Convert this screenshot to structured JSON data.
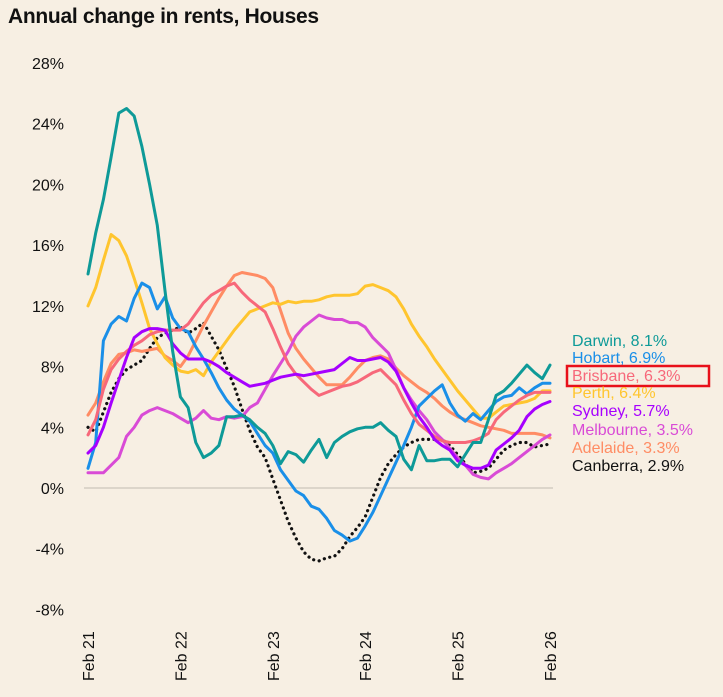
{
  "chart_data": {
    "type": "line",
    "title": "Annual change in rents, Houses",
    "x_start": "Feb 21",
    "x_frequency": "monthly",
    "x_tick_labels": [
      "Feb 21",
      "Feb 22",
      "Feb 23",
      "Feb 24",
      "Feb 25",
      "Feb 26"
    ],
    "y_tick_labels": [
      "28%",
      "24%",
      "20%",
      "16%",
      "12%",
      "8%",
      "4%",
      "0%",
      "-4%",
      "-8%"
    ],
    "ylim": [
      -8,
      28
    ],
    "grid": false,
    "zero_line": true,
    "legend_placement": "right",
    "highlighted_series": "Brisbane",
    "highlight_color": "#e8101a",
    "series": [
      {
        "name": "Darwin",
        "label": "Darwin, 8.1%",
        "color": "#0e9a98",
        "dotted": false,
        "values": [
          14.1,
          16.8,
          19,
          21.8,
          24.7,
          25,
          24.5,
          22.5,
          20,
          17.3,
          13,
          9,
          6,
          5.3,
          3,
          2,
          2.3,
          2.8,
          4.7,
          4.7,
          4.8,
          4.5,
          4,
          3.6,
          2.8,
          1.6,
          2.4,
          2.2,
          1.7,
          2.5,
          3.2,
          2,
          3,
          3.4,
          3.7,
          3.9,
          4,
          4,
          4.3,
          3.8,
          3.4,
          1.9,
          1.2,
          2.8,
          1.8,
          1.8,
          1.9,
          1.9,
          1.4,
          2.2,
          3,
          3,
          4.5,
          6.1,
          6.4,
          6.9,
          7.5,
          8.1,
          7.6,
          7.2,
          8.1
        ]
      },
      {
        "name": "Hobart",
        "label": "Hobart, 6.9%",
        "color": "#1a8fe8",
        "dotted": false,
        "values": [
          1.3,
          3,
          9.7,
          10.8,
          11.3,
          11,
          12.5,
          13.5,
          13.2,
          11.8,
          12.6,
          11.2,
          10.5,
          10.3,
          9.3,
          8.5,
          7.6,
          6.6,
          5.8,
          5.2,
          4.8,
          4.4,
          3.6,
          2.8,
          2.3,
          1.2,
          0.5,
          -0.2,
          -0.5,
          -1.2,
          -1.4,
          -2,
          -2.8,
          -3.1,
          -3.5,
          -3.3,
          -2.5,
          -1.6,
          -0.5,
          0.6,
          1.7,
          2.8,
          4,
          5.4,
          5.9,
          6.4,
          6.8,
          5.6,
          4.8,
          4.4,
          4.9,
          4.5,
          5.1,
          5.7,
          6,
          6.1,
          6.6,
          6.2,
          6.6,
          6.9,
          6.9
        ]
      },
      {
        "name": "Brisbane",
        "label": "Brisbane, 6.3%",
        "color": "#f7687a",
        "dotted": false,
        "values": [
          3.5,
          4.5,
          6.5,
          7.8,
          8.5,
          9,
          9.4,
          9.7,
          10.1,
          10.3,
          10.4,
          10.4,
          10.4,
          10.8,
          11.5,
          12.2,
          12.7,
          13,
          13.3,
          13.5,
          12.9,
          12.4,
          12,
          11.6,
          10.5,
          9.3,
          8.2,
          7.5,
          7,
          6.5,
          6.1,
          6.3,
          6.5,
          6.7,
          6.8,
          7,
          7.3,
          7.6,
          7.8,
          7.3,
          6.8,
          5.8,
          4.9,
          4.2,
          3.8,
          3.4,
          3.1,
          3,
          3,
          3,
          3.1,
          3.3,
          3.6,
          4.5,
          5,
          5.4,
          5.8,
          6.1,
          6.3,
          6.3,
          6.3
        ]
      },
      {
        "name": "Perth",
        "label": "Perth, 6.4%",
        "color": "#ffc52e",
        "dotted": false,
        "values": [
          12,
          13.2,
          15,
          16.7,
          16.3,
          15.3,
          13.8,
          12.2,
          10.5,
          9.5,
          8.6,
          8.1,
          7.7,
          7.6,
          7.8,
          7.4,
          8.3,
          9,
          9.7,
          10.4,
          11,
          11.6,
          11.8,
          12,
          12.2,
          12.1,
          12.3,
          12.2,
          12.3,
          12.3,
          12.4,
          12.6,
          12.7,
          12.7,
          12.7,
          12.8,
          13.3,
          13.4,
          13.2,
          13,
          12.6,
          11.8,
          10.8,
          10,
          9.3,
          8.5,
          7.8,
          7.1,
          6.4,
          5.8,
          5.2,
          4.6,
          4.6,
          5,
          5.4,
          5.5,
          5.6,
          5.7,
          5.9,
          6.4,
          6.4
        ]
      },
      {
        "name": "Sydney",
        "label": "Sydney, 5.7%",
        "color": "#a600ff",
        "dotted": false,
        "values": [
          2.3,
          2.8,
          4,
          5.6,
          7.1,
          8.6,
          9.9,
          10.3,
          10.5,
          10.5,
          10.4,
          9.5,
          8.9,
          8.5,
          8.5,
          8.5,
          8.3,
          8,
          7.6,
          7.3,
          7,
          6.7,
          6.8,
          6.9,
          7.1,
          7.3,
          7.4,
          7.5,
          7.4,
          7.5,
          7.6,
          7.7,
          7.8,
          8.2,
          8.6,
          8.4,
          8.4,
          8.5,
          8.6,
          8.3,
          7.7,
          6.6,
          5.6,
          4.7,
          4,
          3.2,
          2.8,
          2.5,
          1.8,
          1.5,
          1.3,
          1.3,
          1.5,
          2.5,
          2.9,
          3.3,
          3.8,
          4.7,
          5.2,
          5.5,
          5.7
        ]
      },
      {
        "name": "Melbourne",
        "label": "Melbourne, 3.5%",
        "color": "#d94bd6",
        "dotted": false,
        "values": [
          1,
          1,
          1,
          1.5,
          2,
          3.4,
          4,
          4.8,
          5.1,
          5.3,
          5.1,
          4.9,
          4.6,
          4.3,
          4.6,
          5.1,
          4.6,
          4.5,
          4.7,
          4.6,
          4.7,
          5.3,
          5.6,
          6.5,
          7.4,
          8.2,
          9,
          10,
          10.6,
          11,
          11.4,
          11.2,
          11.1,
          11.1,
          10.9,
          10.9,
          10.6,
          9.9,
          9.4,
          8.9,
          7.8,
          6.6,
          5.8,
          5.1,
          4.5,
          3.7,
          3.2,
          2.6,
          2,
          1.5,
          0.9,
          0.7,
          0.6,
          1,
          1.3,
          1.6,
          2,
          2.4,
          2.8,
          3.2,
          3.5
        ]
      },
      {
        "name": "Adelaide",
        "label": "Adelaide, 3.3%",
        "color": "#ff8c64",
        "dotted": false,
        "values": [
          4.8,
          5.6,
          7,
          8.2,
          8.8,
          8.9,
          9.1,
          9,
          9.1,
          9.2,
          8.7,
          8.4,
          8,
          8.7,
          9.7,
          10.7,
          11.6,
          12.5,
          13.3,
          14,
          14.2,
          14.1,
          14,
          13.8,
          13.2,
          11.7,
          10.2,
          9.2,
          8.5,
          7.9,
          7.3,
          6.8,
          6.8,
          6.8,
          7.3,
          7.9,
          8.4,
          8.6,
          8.7,
          8.5,
          7.9,
          7.4,
          7,
          6.6,
          6.3,
          5.9,
          5.4,
          5,
          4.7,
          4.5,
          4.3,
          4.1,
          4,
          3.9,
          3.8,
          3.6,
          3.6,
          3.6,
          3.6,
          3.5,
          3.3
        ]
      },
      {
        "name": "Canberra",
        "label": "Canberra, 2.9%",
        "color": "#111111",
        "dotted": true,
        "values": [
          4,
          3.7,
          5,
          6.3,
          7.2,
          7.8,
          8.1,
          8.4,
          9.2,
          9.9,
          10.2,
          10.4,
          10.6,
          10.2,
          10.5,
          10.9,
          10,
          9.1,
          7.9,
          6.7,
          5.2,
          3.8,
          2.7,
          2,
          0.6,
          -0.8,
          -2.2,
          -3.3,
          -4.2,
          -4.7,
          -4.8,
          -4.6,
          -4.5,
          -4,
          -3.2,
          -2.6,
          -1.9,
          -0.6,
          0.7,
          1.6,
          2.2,
          2.7,
          3,
          3.2,
          3.2,
          3.2,
          3.2,
          2.8,
          2.2,
          1.6,
          1,
          1.1,
          1.3,
          1.9,
          2.5,
          2.8,
          3,
          3,
          2.7,
          2.8,
          2.9
        ]
      }
    ]
  }
}
